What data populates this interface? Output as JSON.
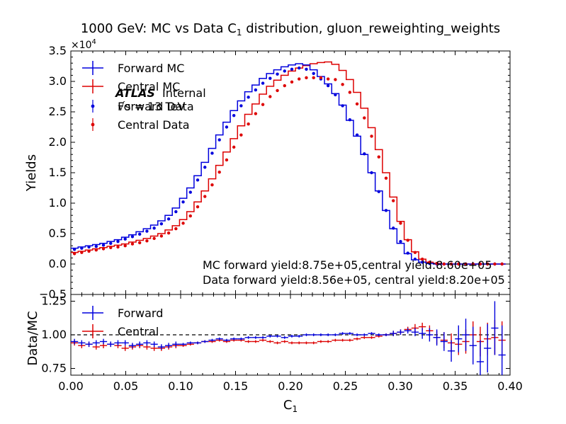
{
  "chart_data": {
    "type": "line",
    "title": "1000 GeV: MC vs Data C",
    "title_sub": "1",
    "title_rest": " distribution, gluon_reweighting_weights",
    "xlabel": "C",
    "xlabel_sub": "1",
    "x_ticks": [
      "0.00",
      "0.05",
      "0.10",
      "0.15",
      "0.20",
      "0.25",
      "0.30",
      "0.35",
      "0.40"
    ],
    "xlim": [
      0.0,
      0.4
    ],
    "colors": {
      "forward": "#0000dd",
      "central": "#dd0000"
    },
    "top": {
      "ylabel": "Yields",
      "scale_label": "×10",
      "scale_exp": "4",
      "ylim": [
        -0.5,
        3.5
      ],
      "y_ticks": [
        "−0.5",
        "0.0",
        "0.5",
        "1.0",
        "1.5",
        "2.0",
        "2.5",
        "3.0",
        "3.5"
      ],
      "legend": [
        "Forward MC",
        "Central MC",
        "Forward Data",
        "Central Data"
      ],
      "atlas_label": "ATLAS",
      "atlas_sub": "Internal",
      "energy_label": "√s = 13 TeV",
      "yield_text_1": "MC forward yield:8.75e+05,central yield:8.60e+05",
      "yield_text_2": "Data forward yield:8.56e+05, central yield:8.20e+05",
      "bin_edges_start": 0.0,
      "bin_width": 0.0066,
      "forward_mc": [
        0.26,
        0.28,
        0.3,
        0.32,
        0.34,
        0.37,
        0.4,
        0.44,
        0.48,
        0.53,
        0.58,
        0.64,
        0.71,
        0.8,
        0.92,
        1.08,
        1.25,
        1.45,
        1.67,
        1.9,
        2.12,
        2.33,
        2.52,
        2.68,
        2.83,
        2.94,
        3.05,
        3.13,
        3.19,
        3.24,
        3.27,
        3.29,
        3.27,
        3.19,
        3.08,
        2.96,
        2.8,
        2.61,
        2.36,
        2.1,
        1.8,
        1.5,
        1.2,
        0.88,
        0.58,
        0.34,
        0.17,
        0.07,
        0.03,
        0.01,
        0.0,
        0.0,
        0.0,
        0.0,
        0.0,
        0.0,
        0.0,
        0.0,
        0.0,
        0.0
      ],
      "central_mc": [
        0.19,
        0.21,
        0.23,
        0.25,
        0.27,
        0.29,
        0.31,
        0.33,
        0.36,
        0.39,
        0.42,
        0.46,
        0.5,
        0.56,
        0.63,
        0.73,
        0.86,
        1.02,
        1.2,
        1.4,
        1.62,
        1.84,
        2.06,
        2.27,
        2.46,
        2.63,
        2.79,
        2.92,
        3.02,
        3.1,
        3.17,
        3.22,
        3.26,
        3.29,
        3.31,
        3.32,
        3.28,
        3.18,
        3.03,
        2.82,
        2.56,
        2.24,
        1.88,
        1.5,
        1.1,
        0.7,
        0.4,
        0.2,
        0.08,
        0.03,
        0.01,
        0.0,
        0.0,
        0.0,
        0.0,
        0.0,
        0.0,
        0.0,
        0.0,
        0.0
      ],
      "forward_data": [
        0.24,
        0.26,
        0.28,
        0.29,
        0.31,
        0.34,
        0.37,
        0.41,
        0.45,
        0.49,
        0.54,
        0.59,
        0.66,
        0.74,
        0.86,
        1.02,
        1.18,
        1.38,
        1.59,
        1.82,
        2.04,
        2.25,
        2.44,
        2.6,
        2.74,
        2.86,
        2.97,
        3.05,
        3.12,
        3.17,
        3.2,
        3.22,
        3.2,
        3.13,
        3.04,
        2.93,
        2.78,
        2.6,
        2.37,
        2.12,
        1.81,
        1.5,
        1.19,
        0.88,
        0.59,
        0.37,
        0.18,
        0.08,
        0.03,
        0.01,
        0.0,
        0.0,
        0.0,
        0.0,
        0.0,
        0.0,
        0.0,
        0.0,
        0.0,
        0.0
      ],
      "central_data": [
        0.17,
        0.19,
        0.21,
        0.23,
        0.25,
        0.27,
        0.28,
        0.3,
        0.33,
        0.35,
        0.38,
        0.42,
        0.46,
        0.51,
        0.58,
        0.67,
        0.79,
        0.94,
        1.11,
        1.3,
        1.51,
        1.71,
        1.92,
        2.12,
        2.3,
        2.47,
        2.62,
        2.75,
        2.85,
        2.93,
        2.99,
        3.04,
        3.06,
        3.06,
        3.06,
        3.04,
        3.03,
        2.95,
        2.82,
        2.63,
        2.4,
        2.1,
        1.76,
        1.41,
        1.04,
        0.67,
        0.39,
        0.19,
        0.08,
        0.03,
        0.01,
        0.0,
        0.0,
        0.0,
        0.0,
        0.0,
        0.0,
        0.0,
        0.0,
        0.0
      ]
    },
    "bottom": {
      "ylabel": "Data/MC",
      "ylim": [
        0.7,
        1.3
      ],
      "y_ticks": [
        "0.75",
        "1.00",
        "1.25"
      ],
      "legend": [
        "Forward",
        "Central"
      ],
      "forward_ratio": [
        0.95,
        0.94,
        0.93,
        0.94,
        0.95,
        0.93,
        0.94,
        0.94,
        0.92,
        0.93,
        0.94,
        0.93,
        0.91,
        0.92,
        0.93,
        0.93,
        0.94,
        0.94,
        0.95,
        0.96,
        0.97,
        0.96,
        0.97,
        0.97,
        0.98,
        0.98,
        0.98,
        0.99,
        0.99,
        0.98,
        0.99,
        0.99,
        1.0,
        1.0,
        1.0,
        1.0,
        1.0,
        1.01,
        1.01,
        1.0,
        1.0,
        1.01,
        1.0,
        1.0,
        1.01,
        1.02,
        1.03,
        1.02,
        1.01,
        1.0,
        0.98,
        0.95,
        0.88,
        0.97,
        1.0,
        0.92,
        0.8,
        0.9,
        1.05,
        0.85
      ],
      "forward_err": [
        0.02,
        0.02,
        0.02,
        0.02,
        0.02,
        0.02,
        0.02,
        0.02,
        0.02,
        0.02,
        0.02,
        0.02,
        0.02,
        0.02,
        0.02,
        0.01,
        0.01,
        0.01,
        0.01,
        0.01,
        0.01,
        0.01,
        0.01,
        0.01,
        0.01,
        0.01,
        0.01,
        0.01,
        0.01,
        0.01,
        0.01,
        0.01,
        0.01,
        0.01,
        0.01,
        0.01,
        0.01,
        0.01,
        0.01,
        0.01,
        0.01,
        0.01,
        0.01,
        0.01,
        0.02,
        0.02,
        0.02,
        0.03,
        0.04,
        0.05,
        0.06,
        0.07,
        0.08,
        0.1,
        0.12,
        0.14,
        0.16,
        0.18,
        0.2,
        0.22
      ],
      "central_ratio": [
        0.94,
        0.92,
        0.93,
        0.91,
        0.92,
        0.93,
        0.92,
        0.9,
        0.91,
        0.92,
        0.91,
        0.9,
        0.9,
        0.91,
        0.92,
        0.92,
        0.93,
        0.94,
        0.95,
        0.95,
        0.96,
        0.95,
        0.96,
        0.96,
        0.95,
        0.95,
        0.96,
        0.95,
        0.94,
        0.95,
        0.94,
        0.94,
        0.94,
        0.94,
        0.95,
        0.95,
        0.96,
        0.96,
        0.96,
        0.97,
        0.98,
        0.98,
        0.99,
        1.0,
        1.01,
        1.02,
        1.04,
        1.05,
        1.06,
        1.03,
        0.98,
        0.96,
        0.94,
        0.93,
        0.95,
        1.0,
        0.95,
        0.97,
        0.98,
        0.96
      ],
      "central_err": [
        0.02,
        0.02,
        0.02,
        0.02,
        0.02,
        0.02,
        0.02,
        0.02,
        0.02,
        0.02,
        0.02,
        0.02,
        0.02,
        0.02,
        0.02,
        0.01,
        0.01,
        0.01,
        0.01,
        0.01,
        0.01,
        0.01,
        0.01,
        0.01,
        0.01,
        0.01,
        0.01,
        0.01,
        0.01,
        0.01,
        0.01,
        0.01,
        0.01,
        0.01,
        0.01,
        0.01,
        0.01,
        0.01,
        0.01,
        0.01,
        0.01,
        0.01,
        0.01,
        0.01,
        0.02,
        0.02,
        0.02,
        0.03,
        0.03,
        0.04,
        0.05,
        0.06,
        0.07,
        0.08,
        0.09,
        0.1,
        0.11,
        0.12,
        0.13,
        0.14
      ]
    }
  }
}
